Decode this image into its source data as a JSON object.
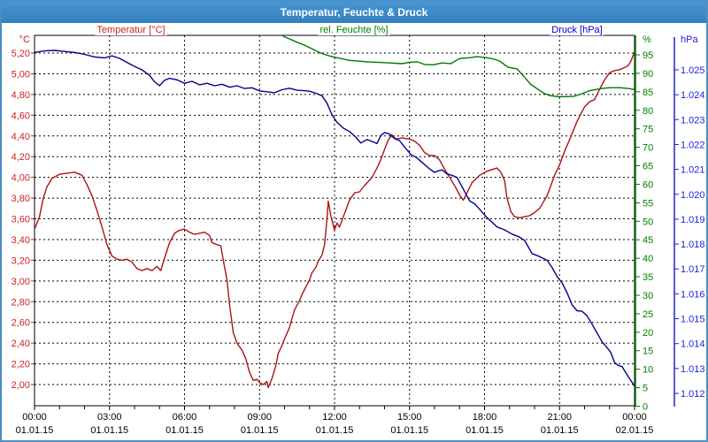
{
  "title": "Temperatur, Feuchte & Druck",
  "chart_data": {
    "type": "line",
    "title": "Temperatur, Feuchte & Druck",
    "grid": "dashed",
    "legend_position": "top",
    "x_axis": {
      "unit": "hours",
      "range": [
        0,
        24
      ],
      "major_tick_every_h": 3,
      "minor_tick_every_h": 1,
      "tick_times": [
        "00:00",
        "03:00",
        "06:00",
        "09:00",
        "12:00",
        "15:00",
        "18:00",
        "21:00",
        "00:00"
      ],
      "tick_dates": [
        "01.01.15",
        "01.01.15",
        "01.01.15",
        "01.01.15",
        "01.01.15",
        "01.01.15",
        "01.01.15",
        "01.01.15",
        "02.01.15"
      ]
    },
    "axes": {
      "temperature": {
        "header": "°C",
        "side": "left",
        "label_color": "#cc2222",
        "min": 2.0,
        "max": 5.2,
        "tick_step": 0.2,
        "tick_labels": [
          "5,20",
          "5,00",
          "4,80",
          "4,60",
          "4,40",
          "4,20",
          "4,00",
          "3,80",
          "3,60",
          "3,40",
          "3,20",
          "3,00",
          "2,80",
          "2,60",
          "2,40",
          "2,20",
          "2,00"
        ]
      },
      "humidity": {
        "header": "%",
        "side": "right-inner",
        "label_color": "#008000",
        "axis_color": "#007700",
        "min": 0,
        "max": 100,
        "tick_values": [
          95,
          90,
          85,
          80,
          75,
          70,
          65,
          60,
          55,
          50,
          45,
          40,
          35,
          30,
          25,
          20,
          15,
          10,
          5,
          0
        ]
      },
      "pressure": {
        "header": "hPa",
        "side": "right-outer",
        "label_color": "#2222dd",
        "axis_color": "#2222cc",
        "min": 1.012,
        "max": 1.025,
        "tick_labels": [
          "1.025",
          "1.024",
          "1.023",
          "1.022",
          "1.021",
          "1.020",
          "1.019",
          "1.018",
          "1.017",
          "1.016",
          "1.015",
          "1.014",
          "1.013",
          "1.012"
        ]
      }
    },
    "series": [
      {
        "id": "temperature",
        "label": "Temperatur [°C]",
        "color": "#aa1414",
        "axis": "temperature",
        "points": [
          [
            0,
            3.5
          ],
          [
            0.2,
            3.62
          ],
          [
            0.35,
            3.8
          ],
          [
            0.5,
            3.91
          ],
          [
            0.7,
            3.99
          ],
          [
            1.0,
            4.03
          ],
          [
            1.3,
            4.04
          ],
          [
            1.6,
            4.05
          ],
          [
            1.9,
            4.02
          ],
          [
            2.1,
            3.93
          ],
          [
            2.3,
            3.82
          ],
          [
            2.5,
            3.68
          ],
          [
            2.7,
            3.52
          ],
          [
            2.9,
            3.35
          ],
          [
            3.1,
            3.24
          ],
          [
            3.3,
            3.21
          ],
          [
            3.5,
            3.2
          ],
          [
            3.7,
            3.21
          ],
          [
            3.9,
            3.18
          ],
          [
            4.1,
            3.12
          ],
          [
            4.3,
            3.1
          ],
          [
            4.5,
            3.12
          ],
          [
            4.7,
            3.1
          ],
          [
            4.9,
            3.14
          ],
          [
            5.05,
            3.1
          ],
          [
            5.2,
            3.22
          ],
          [
            5.4,
            3.37
          ],
          [
            5.6,
            3.46
          ],
          [
            5.8,
            3.49
          ],
          [
            6.0,
            3.5
          ],
          [
            6.2,
            3.47
          ],
          [
            6.4,
            3.45
          ],
          [
            6.6,
            3.46
          ],
          [
            6.8,
            3.47
          ],
          [
            7.0,
            3.44
          ],
          [
            7.1,
            3.37
          ],
          [
            7.3,
            3.35
          ],
          [
            7.45,
            3.34
          ],
          [
            7.55,
            3.2
          ],
          [
            7.7,
            3.01
          ],
          [
            7.8,
            2.77
          ],
          [
            7.95,
            2.5
          ],
          [
            8.1,
            2.4
          ],
          [
            8.3,
            2.33
          ],
          [
            8.45,
            2.25
          ],
          [
            8.6,
            2.12
          ],
          [
            8.75,
            2.04
          ],
          [
            8.9,
            2.05
          ],
          [
            9.0,
            2.02
          ],
          [
            9.15,
            2.0
          ],
          [
            9.3,
            2.03
          ],
          [
            9.35,
            1.97
          ],
          [
            9.5,
            2.06
          ],
          [
            9.65,
            2.18
          ],
          [
            9.75,
            2.3
          ],
          [
            9.9,
            2.38
          ],
          [
            10.0,
            2.44
          ],
          [
            10.2,
            2.55
          ],
          [
            10.3,
            2.64
          ],
          [
            10.4,
            2.72
          ],
          [
            10.6,
            2.81
          ],
          [
            10.7,
            2.87
          ],
          [
            10.85,
            2.94
          ],
          [
            11.0,
            3.01
          ],
          [
            11.1,
            3.08
          ],
          [
            11.25,
            3.13
          ],
          [
            11.35,
            3.19
          ],
          [
            11.5,
            3.25
          ],
          [
            11.6,
            3.35
          ],
          [
            11.7,
            3.6
          ],
          [
            11.75,
            3.77
          ],
          [
            11.85,
            3.63
          ],
          [
            12.0,
            3.49
          ],
          [
            12.1,
            3.56
          ],
          [
            12.2,
            3.52
          ],
          [
            12.35,
            3.62
          ],
          [
            12.6,
            3.78
          ],
          [
            12.8,
            3.85
          ],
          [
            13.0,
            3.86
          ],
          [
            13.2,
            3.92
          ],
          [
            13.5,
            4.0
          ],
          [
            13.7,
            4.09
          ],
          [
            13.85,
            4.17
          ],
          [
            14.0,
            4.27
          ],
          [
            14.15,
            4.36
          ],
          [
            14.3,
            4.41
          ],
          [
            14.45,
            4.37
          ],
          [
            14.7,
            4.38
          ],
          [
            15.0,
            4.37
          ],
          [
            15.2,
            4.35
          ],
          [
            15.4,
            4.31
          ],
          [
            15.6,
            4.24
          ],
          [
            15.8,
            4.21
          ],
          [
            16.0,
            4.21
          ],
          [
            16.2,
            4.17
          ],
          [
            16.4,
            4.08
          ],
          [
            16.5,
            4.04
          ],
          [
            16.7,
            3.96
          ],
          [
            16.85,
            3.9
          ],
          [
            17.0,
            3.83
          ],
          [
            17.15,
            3.78
          ],
          [
            17.3,
            3.85
          ],
          [
            17.5,
            3.95
          ],
          [
            17.8,
            4.02
          ],
          [
            18.1,
            4.06
          ],
          [
            18.35,
            4.08
          ],
          [
            18.5,
            4.09
          ],
          [
            18.65,
            4.05
          ],
          [
            18.8,
            3.97
          ],
          [
            18.9,
            3.8
          ],
          [
            19.05,
            3.67
          ],
          [
            19.2,
            3.62
          ],
          [
            19.4,
            3.61
          ],
          [
            19.6,
            3.62
          ],
          [
            19.8,
            3.63
          ],
          [
            20.0,
            3.66
          ],
          [
            20.2,
            3.7
          ],
          [
            20.5,
            3.82
          ],
          [
            20.8,
            4.02
          ],
          [
            21.0,
            4.12
          ],
          [
            21.2,
            4.25
          ],
          [
            21.5,
            4.42
          ],
          [
            21.7,
            4.54
          ],
          [
            22.0,
            4.68
          ],
          [
            22.2,
            4.73
          ],
          [
            22.4,
            4.75
          ],
          [
            22.6,
            4.85
          ],
          [
            22.8,
            4.94
          ],
          [
            23.0,
            5.01
          ],
          [
            23.2,
            5.03
          ],
          [
            23.4,
            5.04
          ],
          [
            23.6,
            5.06
          ],
          [
            23.75,
            5.08
          ],
          [
            23.85,
            5.12
          ],
          [
            24.0,
            5.21
          ]
        ]
      },
      {
        "id": "humidity",
        "label": "rel. Feuchte [%]",
        "color": "#007700",
        "axis": "humidity",
        "points": [
          [
            9.95,
            100
          ],
          [
            10.2,
            99.3
          ],
          [
            10.5,
            98.4
          ],
          [
            10.8,
            97.6
          ],
          [
            11.1,
            96.6
          ],
          [
            11.4,
            95.6
          ],
          [
            11.65,
            95.0
          ],
          [
            11.9,
            94.5
          ],
          [
            12.25,
            94.0
          ],
          [
            12.6,
            93.5
          ],
          [
            12.95,
            93.3
          ],
          [
            13.3,
            93.1
          ],
          [
            13.7,
            93.0
          ],
          [
            14.2,
            92.8
          ],
          [
            14.7,
            92.6
          ],
          [
            15.0,
            93.0
          ],
          [
            15.3,
            93.1
          ],
          [
            15.6,
            92.4
          ],
          [
            15.95,
            92.3
          ],
          [
            16.3,
            92.8
          ],
          [
            16.65,
            92.6
          ],
          [
            17.0,
            94.0
          ],
          [
            17.4,
            94.2
          ],
          [
            17.7,
            94.5
          ],
          [
            18.1,
            94.2
          ],
          [
            18.4,
            93.8
          ],
          [
            18.6,
            93.3
          ],
          [
            18.95,
            91.6
          ],
          [
            19.3,
            91.2
          ],
          [
            19.5,
            89.7
          ],
          [
            19.85,
            87.0
          ],
          [
            20.2,
            85.4
          ],
          [
            20.4,
            84.5
          ],
          [
            20.6,
            84.0
          ],
          [
            20.9,
            83.7
          ],
          [
            21.3,
            83.7
          ],
          [
            21.6,
            83.8
          ],
          [
            21.9,
            84.5
          ],
          [
            22.2,
            85.3
          ],
          [
            22.7,
            85.9
          ],
          [
            23.0,
            86.1
          ],
          [
            23.4,
            86.1
          ],
          [
            23.75,
            85.9
          ],
          [
            24.0,
            85.6
          ]
        ]
      },
      {
        "id": "pressure",
        "label": "Druck [hPa]",
        "color": "#000090",
        "axis": "pressure",
        "points": [
          [
            0,
            1.0257
          ],
          [
            0.4,
            1.02576
          ],
          [
            0.8,
            1.02578
          ],
          [
            1.2,
            1.02574
          ],
          [
            1.6,
            1.0257
          ],
          [
            2.0,
            1.02562
          ],
          [
            2.4,
            1.02552
          ],
          [
            2.8,
            1.02548
          ],
          [
            3.1,
            1.02556
          ],
          [
            3.4,
            1.02546
          ],
          [
            3.7,
            1.0253
          ],
          [
            4.0,
            1.02514
          ],
          [
            4.3,
            1.025
          ],
          [
            4.6,
            1.02478
          ],
          [
            4.8,
            1.02452
          ],
          [
            5.0,
            1.02436
          ],
          [
            5.2,
            1.02458
          ],
          [
            5.4,
            1.02466
          ],
          [
            5.7,
            1.0246
          ],
          [
            6.0,
            1.02446
          ],
          [
            6.3,
            1.02454
          ],
          [
            6.6,
            1.0244
          ],
          [
            6.9,
            1.02446
          ],
          [
            7.2,
            1.02436
          ],
          [
            7.5,
            1.02442
          ],
          [
            7.8,
            1.0243
          ],
          [
            8.1,
            1.02436
          ],
          [
            8.4,
            1.02425
          ],
          [
            8.7,
            1.02428
          ],
          [
            9.0,
            1.02415
          ],
          [
            9.3,
            1.02412
          ],
          [
            9.6,
            1.02408
          ],
          [
            9.9,
            1.0242
          ],
          [
            10.2,
            1.02426
          ],
          [
            10.5,
            1.02418
          ],
          [
            10.8,
            1.02416
          ],
          [
            11.0,
            1.02414
          ],
          [
            11.3,
            1.02404
          ],
          [
            11.5,
            1.02396
          ],
          [
            11.7,
            1.02366
          ],
          [
            11.9,
            1.02319
          ],
          [
            12.1,
            1.02289
          ],
          [
            12.35,
            1.02266
          ],
          [
            12.6,
            1.02252
          ],
          [
            12.85,
            1.0223
          ],
          [
            13.05,
            1.02206
          ],
          [
            13.3,
            1.0222
          ],
          [
            13.55,
            1.0221
          ],
          [
            13.7,
            1.02204
          ],
          [
            13.85,
            1.02236
          ],
          [
            14.0,
            1.02248
          ],
          [
            14.2,
            1.02242
          ],
          [
            14.4,
            1.02224
          ],
          [
            14.6,
            1.02216
          ],
          [
            14.8,
            1.0219
          ],
          [
            15.05,
            1.0216
          ],
          [
            15.3,
            1.02146
          ],
          [
            15.5,
            1.02128
          ],
          [
            15.8,
            1.02102
          ],
          [
            16.0,
            1.02088
          ],
          [
            16.15,
            1.02094
          ],
          [
            16.3,
            1.02098
          ],
          [
            16.5,
            1.02082
          ],
          [
            16.7,
            1.02076
          ],
          [
            16.9,
            1.02068
          ],
          [
            17.1,
            1.0203
          ],
          [
            17.4,
            1.01974
          ],
          [
            17.6,
            1.01962
          ],
          [
            17.8,
            1.0194
          ],
          [
            18.1,
            1.01906
          ],
          [
            18.3,
            1.01888
          ],
          [
            18.5,
            1.01869
          ],
          [
            18.8,
            1.01857
          ],
          [
            19.1,
            1.0184
          ],
          [
            19.4,
            1.01828
          ],
          [
            19.6,
            1.01815
          ],
          [
            19.9,
            1.01762
          ],
          [
            20.2,
            1.0175
          ],
          [
            20.5,
            1.01735
          ],
          [
            20.7,
            1.01706
          ],
          [
            20.9,
            1.0167
          ],
          [
            21.1,
            1.01644
          ],
          [
            21.3,
            1.01605
          ],
          [
            21.5,
            1.01556
          ],
          [
            21.7,
            1.01532
          ],
          [
            21.9,
            1.0153
          ],
          [
            22.1,
            1.01512
          ],
          [
            22.3,
            1.01478
          ],
          [
            22.5,
            1.01443
          ],
          [
            22.7,
            1.01407
          ],
          [
            22.9,
            1.01384
          ],
          [
            23.05,
            1.01364
          ],
          [
            23.2,
            1.01324
          ],
          [
            23.35,
            1.01312
          ],
          [
            23.5,
            1.01308
          ],
          [
            23.7,
            1.01275
          ],
          [
            23.85,
            1.01252
          ],
          [
            24.0,
            1.01229
          ]
        ]
      }
    ]
  }
}
